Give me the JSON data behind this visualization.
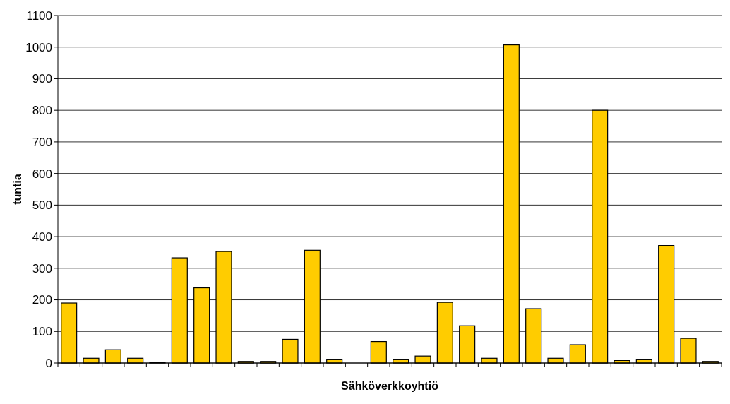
{
  "chart_data": {
    "type": "bar",
    "xlabel": "Sähköverkkoyhtiö",
    "ylabel": "tuntia",
    "categories": [
      null,
      null,
      null,
      null,
      null,
      null,
      null,
      null,
      null,
      null,
      null,
      null,
      null,
      null,
      null,
      null,
      null,
      null,
      null,
      null,
      null,
      null,
      null,
      null,
      null,
      null,
      null,
      null,
      null,
      null
    ],
    "values": [
      190,
      15,
      42,
      15,
      2,
      333,
      238,
      353,
      5,
      5,
      75,
      357,
      12,
      null,
      68,
      12,
      22,
      192,
      118,
      15,
      1007,
      172,
      15,
      58,
      800,
      8,
      12,
      372,
      78,
      5
    ],
    "color": "#ffcc00",
    "ylim": [
      0,
      1100
    ],
    "yticks": [
      0,
      100,
      200,
      300,
      400,
      500,
      600,
      700,
      800,
      900,
      1000,
      1100
    ],
    "grid": "y"
  }
}
